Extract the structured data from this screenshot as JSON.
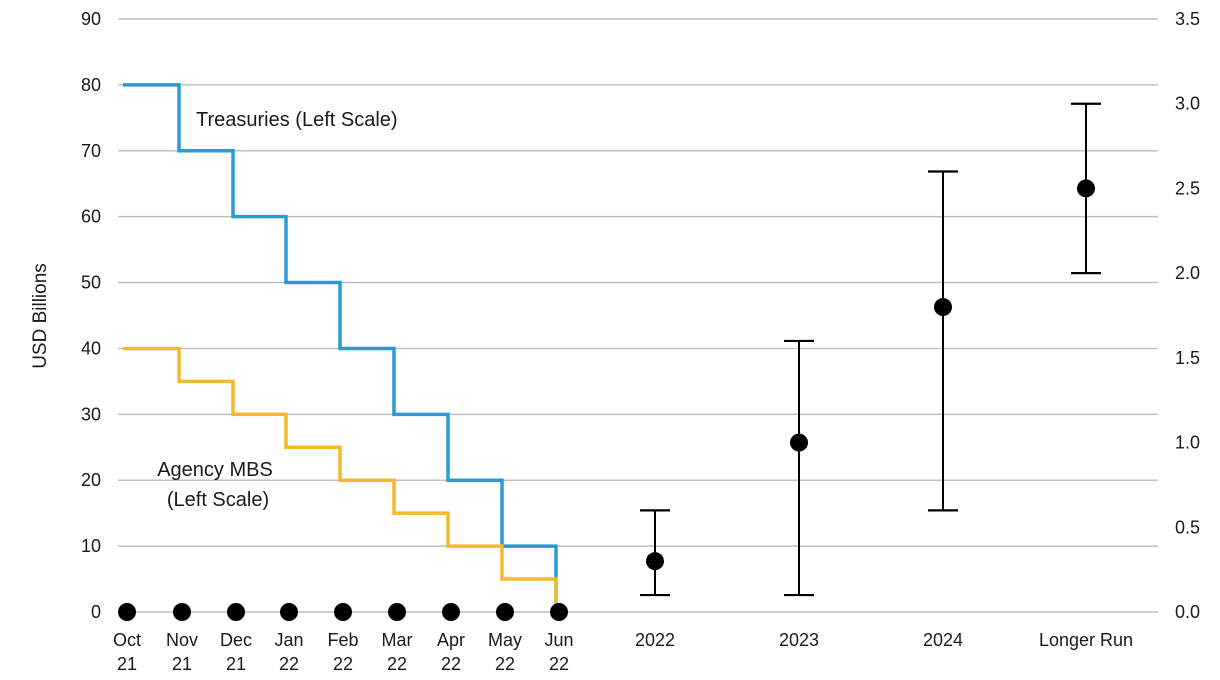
{
  "chart_data": {
    "type": "line",
    "ylabel_left": "USD Billions",
    "ylabel_right": "",
    "ylim_left": [
      0,
      90
    ],
    "ylim_right": [
      0,
      3.5
    ],
    "yticks_left": [
      "0",
      "10",
      "20",
      "30",
      "40",
      "50",
      "60",
      "70",
      "80",
      "90"
    ],
    "yticks_right": [
      "0.0",
      "0.5",
      "1.0",
      "1.5",
      "2.0",
      "2.5",
      "3.0",
      "3.5"
    ],
    "grid": true,
    "months": [
      {
        "line1": "Oct",
        "line2": "21"
      },
      {
        "line1": "Nov",
        "line2": "21"
      },
      {
        "line1": "Dec",
        "line2": "21"
      },
      {
        "line1": "Jan",
        "line2": "22"
      },
      {
        "line1": "Feb",
        "line2": "22"
      },
      {
        "line1": "Mar",
        "line2": "22"
      },
      {
        "line1": "Apr",
        "line2": "22"
      },
      {
        "line1": "May",
        "line2": "22"
      },
      {
        "line1": "Jun",
        "line2": "22"
      }
    ],
    "series": [
      {
        "name": "Treasuries",
        "label_line1": "Treasuries (Left Scale)",
        "label_line2": "",
        "color": "#2A9BD5",
        "axis": "left",
        "values": [
          80,
          70,
          60,
          50,
          40,
          30,
          20,
          10,
          0
        ]
      },
      {
        "name": "Agency MBS",
        "label_line1": "Agency MBS",
        "label_line2": "(Left Scale)",
        "color": "#F5B82E",
        "axis": "left",
        "values": [
          40,
          35,
          30,
          25,
          20,
          15,
          10,
          5,
          0
        ]
      }
    ],
    "month_points": {
      "axis": "right",
      "values": [
        0,
        0,
        0,
        0,
        0,
        0,
        0,
        0,
        0
      ]
    },
    "projections": {
      "axis": "right",
      "categories": [
        "2022",
        "2023",
        "2024",
        "Longer Run"
      ],
      "median": [
        0.3,
        1.0,
        1.8,
        2.5
      ],
      "low": [
        0.1,
        0.1,
        0.6,
        2.0
      ],
      "high": [
        0.6,
        1.6,
        2.6,
        3.0
      ]
    }
  }
}
